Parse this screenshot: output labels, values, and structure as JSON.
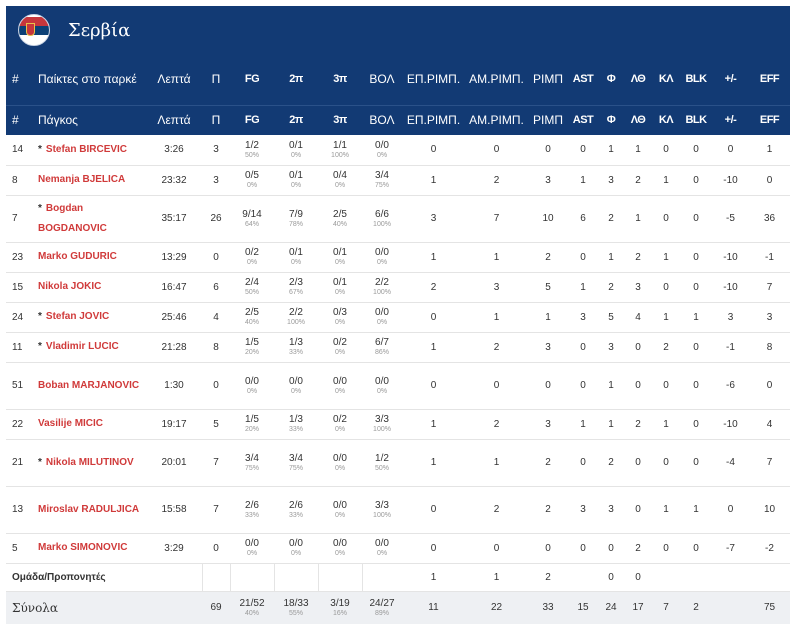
{
  "team": {
    "name": "Σερβία",
    "flag_icon": "serbia-flag-icon"
  },
  "headers_top": [
    "#",
    "Παίκτες στο παρκέ",
    "Λεπτά",
    "Π",
    "FG",
    "2π",
    "3π",
    "ΒΟΛ",
    "ΕΠ.ΡΙΜΠ.",
    "ΑΜ.ΡΙΜΠ.",
    "ΡΙΜΠ",
    "AST",
    "Φ",
    "ΛΘ",
    "ΚΛ",
    "BLK",
    "+/-",
    "EFF"
  ],
  "headers_bottom": [
    "#",
    "Πάγκος",
    "Λεπτά",
    "Π",
    "FG",
    "2π",
    "3π",
    "ΒΟΛ",
    "ΕΠ.ΡΙΜΠ.",
    "ΑΜ.ΡΙΜΠ.",
    "ΡΙΜΠ",
    "AST",
    "Φ",
    "ΛΘ",
    "ΚΛ",
    "BLK",
    "+/-",
    "EFF"
  ],
  "players": [
    {
      "num": "14",
      "star": true,
      "first": "Stefan",
      "last": "BIRCEVIC",
      "min": "3:26",
      "pts": "3",
      "fg": "1/2",
      "fg_pct": "50%",
      "p2": "0/1",
      "p2_pct": "0%",
      "p3": "1/1",
      "p3_pct": "100%",
      "ft": "0/0",
      "ft_pct": "0%",
      "oreb": "0",
      "dreb": "0",
      "reb": "0",
      "ast": "0",
      "pf": "1",
      "to": "1",
      "stl": "0",
      "blk": "0",
      "pm": "0",
      "eff": "1"
    },
    {
      "num": "8",
      "star": false,
      "first": "Nemanja",
      "last": "BJELICA",
      "min": "23:32",
      "pts": "3",
      "fg": "0/5",
      "fg_pct": "0%",
      "p2": "0/1",
      "p2_pct": "0%",
      "p3": "0/4",
      "p3_pct": "0%",
      "ft": "3/4",
      "ft_pct": "75%",
      "oreb": "1",
      "dreb": "2",
      "reb": "3",
      "ast": "1",
      "pf": "3",
      "to": "2",
      "stl": "1",
      "blk": "0",
      "pm": "-10",
      "eff": "0"
    },
    {
      "num": "7",
      "star": true,
      "first": "Bogdan",
      "last": "BOGDANOVIC",
      "min": "35:17",
      "pts": "26",
      "fg": "9/14",
      "fg_pct": "64%",
      "p2": "7/9",
      "p2_pct": "78%",
      "p3": "2/5",
      "p3_pct": "40%",
      "ft": "6/6",
      "ft_pct": "100%",
      "oreb": "3",
      "dreb": "7",
      "reb": "10",
      "ast": "6",
      "pf": "2",
      "to": "1",
      "stl": "0",
      "blk": "0",
      "pm": "-5",
      "eff": "36"
    },
    {
      "num": "23",
      "star": false,
      "first": "Marko",
      "last": "GUDURIC",
      "min": "13:29",
      "pts": "0",
      "fg": "0/2",
      "fg_pct": "0%",
      "p2": "0/1",
      "p2_pct": "0%",
      "p3": "0/1",
      "p3_pct": "0%",
      "ft": "0/0",
      "ft_pct": "0%",
      "oreb": "1",
      "dreb": "1",
      "reb": "2",
      "ast": "0",
      "pf": "1",
      "to": "2",
      "stl": "1",
      "blk": "0",
      "pm": "-10",
      "eff": "-1"
    },
    {
      "num": "15",
      "star": false,
      "first": "Nikola",
      "last": "JOKIC",
      "min": "16:47",
      "pts": "6",
      "fg": "2/4",
      "fg_pct": "50%",
      "p2": "2/3",
      "p2_pct": "67%",
      "p3": "0/1",
      "p3_pct": "0%",
      "ft": "2/2",
      "ft_pct": "100%",
      "oreb": "2",
      "dreb": "3",
      "reb": "5",
      "ast": "1",
      "pf": "2",
      "to": "3",
      "stl": "0",
      "blk": "0",
      "pm": "-10",
      "eff": "7"
    },
    {
      "num": "24",
      "star": true,
      "first": "Stefan",
      "last": "JOVIC",
      "min": "25:46",
      "pts": "4",
      "fg": "2/5",
      "fg_pct": "40%",
      "p2": "2/2",
      "p2_pct": "100%",
      "p3": "0/3",
      "p3_pct": "0%",
      "ft": "0/0",
      "ft_pct": "0%",
      "oreb": "0",
      "dreb": "1",
      "reb": "1",
      "ast": "3",
      "pf": "5",
      "to": "4",
      "stl": "1",
      "blk": "1",
      "pm": "3",
      "eff": "3"
    },
    {
      "num": "11",
      "star": true,
      "first": "Vladimir",
      "last": "LUCIC",
      "min": "21:28",
      "pts": "8",
      "fg": "1/5",
      "fg_pct": "20%",
      "p2": "1/3",
      "p2_pct": "33%",
      "p3": "0/2",
      "p3_pct": "0%",
      "ft": "6/7",
      "ft_pct": "86%",
      "oreb": "1",
      "dreb": "2",
      "reb": "3",
      "ast": "0",
      "pf": "3",
      "to": "0",
      "stl": "2",
      "blk": "0",
      "pm": "-1",
      "eff": "8"
    },
    {
      "num": "51",
      "star": false,
      "first": "Boban",
      "last": "MARJANOVIC",
      "min": "1:30",
      "pts": "0",
      "fg": "0/0",
      "fg_pct": "0%",
      "p2": "0/0",
      "p2_pct": "0%",
      "p3": "0/0",
      "p3_pct": "0%",
      "ft": "0/0",
      "ft_pct": "0%",
      "oreb": "0",
      "dreb": "0",
      "reb": "0",
      "ast": "0",
      "pf": "1",
      "to": "0",
      "stl": "0",
      "blk": "0",
      "pm": "-6",
      "eff": "0"
    },
    {
      "num": "22",
      "star": false,
      "first": "Vasilije",
      "last": "MICIC",
      "min": "19:17",
      "pts": "5",
      "fg": "1/5",
      "fg_pct": "20%",
      "p2": "1/3",
      "p2_pct": "33%",
      "p3": "0/2",
      "p3_pct": "0%",
      "ft": "3/3",
      "ft_pct": "100%",
      "oreb": "1",
      "dreb": "2",
      "reb": "3",
      "ast": "1",
      "pf": "1",
      "to": "2",
      "stl": "1",
      "blk": "0",
      "pm": "-10",
      "eff": "4"
    },
    {
      "num": "21",
      "star": true,
      "first": "Nikola",
      "last": "MILUTINOV",
      "min": "20:01",
      "pts": "7",
      "fg": "3/4",
      "fg_pct": "75%",
      "p2": "3/4",
      "p2_pct": "75%",
      "p3": "0/0",
      "p3_pct": "0%",
      "ft": "1/2",
      "ft_pct": "50%",
      "oreb": "1",
      "dreb": "1",
      "reb": "2",
      "ast": "0",
      "pf": "2",
      "to": "0",
      "stl": "0",
      "blk": "0",
      "pm": "-4",
      "eff": "7"
    },
    {
      "num": "13",
      "star": false,
      "first": "Miroslav",
      "last": "RADULJICA",
      "min": "15:58",
      "pts": "7",
      "fg": "2/6",
      "fg_pct": "33%",
      "p2": "2/6",
      "p2_pct": "33%",
      "p3": "0/0",
      "p3_pct": "0%",
      "ft": "3/3",
      "ft_pct": "100%",
      "oreb": "0",
      "dreb": "2",
      "reb": "2",
      "ast": "3",
      "pf": "3",
      "to": "0",
      "stl": "1",
      "blk": "1",
      "pm": "0",
      "eff": "10"
    },
    {
      "num": "5",
      "star": false,
      "first": "Marko",
      "last": "SIMONOVIC",
      "min": "3:29",
      "pts": "0",
      "fg": "0/0",
      "fg_pct": "0%",
      "p2": "0/0",
      "p2_pct": "0%",
      "p3": "0/0",
      "p3_pct": "0%",
      "ft": "0/0",
      "ft_pct": "0%",
      "oreb": "0",
      "dreb": "0",
      "reb": "0",
      "ast": "0",
      "pf": "0",
      "to": "2",
      "stl": "0",
      "blk": "0",
      "pm": "-7",
      "eff": "-2"
    }
  ],
  "team_row": {
    "label": "Ομάδα/Προπονητές",
    "oreb": "1",
    "dreb": "1",
    "reb": "2",
    "pf": "0",
    "to": "0"
  },
  "totals": {
    "label": "Σύνολα",
    "pts": "69",
    "fg": "21/52",
    "fg_pct": "40%",
    "p2": "18/33",
    "p2_pct": "55%",
    "p3": "3/19",
    "p3_pct": "16%",
    "ft": "24/27",
    "ft_pct": "89%",
    "oreb": "11",
    "dreb": "22",
    "reb": "33",
    "ast": "15",
    "pf": "24",
    "to": "17",
    "stl": "7",
    "blk": "2",
    "eff": "75"
  }
}
